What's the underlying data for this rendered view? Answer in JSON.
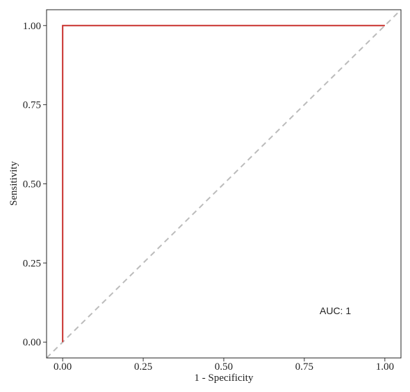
{
  "chart_data": {
    "type": "line",
    "x_label": "1 - Specificity",
    "y_label": "Sensitivity",
    "x": [
      0,
      0,
      1
    ],
    "values": [
      0,
      1,
      1
    ],
    "color": "#c9302c",
    "reference_line": true,
    "reference_color": "#bbbbbb",
    "annotation": "AUC: 1",
    "xlim": [
      -0.05,
      1.05
    ],
    "ylim": [
      -0.05,
      1.05
    ],
    "xticks": [
      {
        "value": 0,
        "label": "0.00"
      },
      {
        "value": 0.25,
        "label": "0.25"
      },
      {
        "value": 0.5,
        "label": "0.50"
      },
      {
        "value": 0.75,
        "label": "0.75"
      },
      {
        "value": 1,
        "label": "1.00"
      }
    ],
    "yticks": [
      {
        "value": 0,
        "label": "0.00"
      },
      {
        "value": 0.25,
        "label": "0.25"
      },
      {
        "value": 0.5,
        "label": "0.50"
      },
      {
        "value": 0.75,
        "label": "0.75"
      },
      {
        "value": 1,
        "label": "1.00"
      }
    ]
  }
}
